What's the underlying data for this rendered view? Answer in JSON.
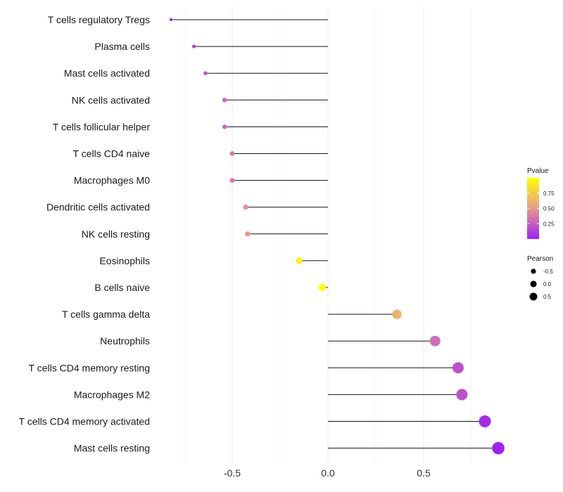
{
  "chart_data": {
    "type": "lollipop",
    "title": "",
    "xlabel": "",
    "ylabel": "",
    "xlim": [
      -0.9,
      0.95
    ],
    "x_ticks": [
      -0.5,
      0.0,
      0.5
    ],
    "x_tick_labels": [
      "-0.5",
      "0.0",
      "0.5"
    ],
    "grid": true,
    "categories": [
      "T cells regulatory  Tregs",
      "Plasma cells",
      "Mast cells activated",
      "NK cells activated",
      "T cells follicular helper",
      "T cells CD4 naive",
      "Macrophages M0",
      "Dendritic cells activated",
      "NK cells resting",
      "Eosinophils",
      "B cells naive",
      "T cells gamma delta",
      "Neutrophils",
      "T cells CD4 memory resting",
      "Macrophages M2",
      "T cells CD4 memory activated",
      "Mast cells resting"
    ],
    "pearson": [
      -0.82,
      -0.7,
      -0.64,
      -0.54,
      -0.54,
      -0.5,
      -0.5,
      -0.43,
      -0.42,
      -0.15,
      -0.03,
      0.36,
      0.56,
      0.68,
      0.7,
      0.82,
      0.89
    ],
    "pvalue": [
      0.01,
      0.12,
      0.2,
      0.3,
      0.3,
      0.36,
      0.36,
      0.46,
      0.48,
      0.94,
      1.0,
      0.62,
      0.32,
      0.2,
      0.2,
      0.04,
      0.01
    ],
    "legend_color": {
      "title": "Pvalue",
      "ticks": [
        0.75,
        0.5,
        0.25
      ],
      "tick_labels": [
        "0.75",
        "0.50",
        "0.25"
      ],
      "low_color": "#A020F0",
      "mid_color": "#E89A90",
      "high_color": "#FFFF00",
      "position": "right"
    },
    "legend_size": {
      "title": "Pearson",
      "values": [
        -0.5,
        0.0,
        0.5
      ],
      "labels": [
        "-0.5",
        "0.0",
        "0.5"
      ],
      "position": "right"
    }
  }
}
